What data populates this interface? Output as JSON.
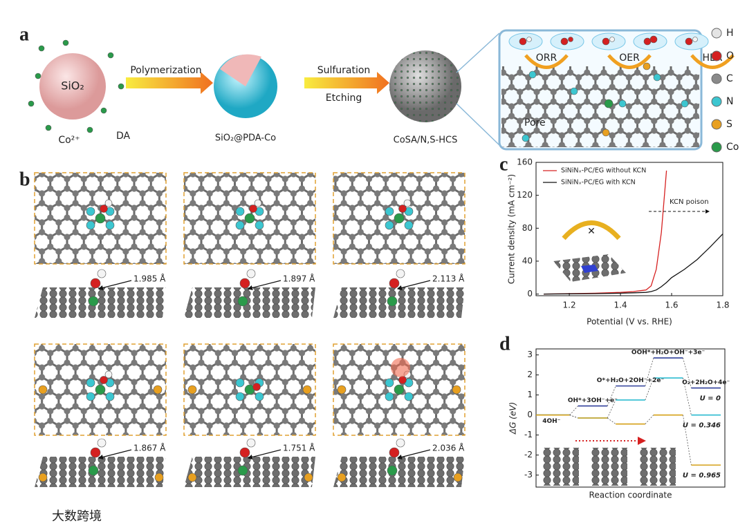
{
  "panel_a": {
    "label": "a",
    "sphere_core": "SiO₂",
    "ion": "Co²⁺",
    "monomer": "DA",
    "step_1": "Polymerization",
    "intermediate": "SiO₂@PDA-Co",
    "step_2": [
      "Sulfuration",
      "Etching"
    ],
    "product": "CoSA/N,S-HCS",
    "reactions": [
      "ORR",
      "OER",
      "HER"
    ],
    "pore": "Pore",
    "legend": [
      {
        "symbol": "H",
        "color": "#e4e4e4"
      },
      {
        "symbol": "O",
        "color": "#d42020"
      },
      {
        "symbol": "C",
        "color": "#8a8a8a"
      },
      {
        "symbol": "N",
        "color": "#3cc6d0"
      },
      {
        "symbol": "S",
        "color": "#e8a020"
      },
      {
        "symbol": "Co",
        "color": "#2a9a4a"
      }
    ]
  },
  "panel_b": {
    "label": "b",
    "distances": [
      "1.985 Å",
      "1.897 Å",
      "2.113 Å",
      "1.867 Å",
      "1.751 Å",
      "2.036 Å"
    ]
  },
  "panel_c": {
    "label": "c",
    "chart_data": {
      "type": "line",
      "xlabel": "Potential (V vs. RHE)",
      "ylabel": "Current density (mA cm⁻²)",
      "x": [
        1.1,
        1.2,
        1.3,
        1.4,
        1.45,
        1.5,
        1.52,
        1.54,
        1.56,
        1.58,
        1.6,
        1.65,
        1.7,
        1.75,
        1.8
      ],
      "series": [
        {
          "name": "SiNiNₓ-PC/EG without KCN",
          "color": "#d62020",
          "values": [
            0,
            0.5,
            1,
            2,
            3,
            5,
            10,
            30,
            75,
            150,
            null,
            null,
            null,
            null,
            null
          ]
        },
        {
          "name": "SiNiNₓ-PC/EG with KCN",
          "color": "#111111",
          "values": [
            0,
            0.3,
            0.5,
            1,
            1.5,
            2,
            3,
            5,
            9,
            14,
            20,
            30,
            42,
            57,
            73
          ]
        }
      ],
      "xlim": [
        1.07,
        1.8
      ],
      "ylim": [
        -2,
        160
      ],
      "xticks": [
        1.2,
        1.4,
        1.6,
        1.8
      ],
      "yticks": [
        0,
        40,
        80,
        120,
        160
      ],
      "annotation": "KCN poison",
      "legend": "upper left"
    }
  },
  "panel_d": {
    "label": "d",
    "chart_data": {
      "type": "step",
      "xlabel": "Reaction coordinate",
      "ylabel": "ΔG (eV)",
      "categories": [
        "4OH⁻",
        "OH*+3OH⁻+e⁻",
        "O*+H₂O+2OH⁻+2e⁻",
        "OOH*+H₂O+OH⁻+3e⁻",
        "O₂+2H₂O+4e⁻"
      ],
      "series": [
        {
          "name": "U = 0",
          "color": "#2f3f9a",
          "values": [
            0,
            0.45,
            1.45,
            2.85,
            1.35
          ]
        },
        {
          "name": "U = 0.346",
          "color": "#2bbbd0",
          "values": [
            0,
            -0.15,
            0.75,
            1.85,
            0
          ]
        },
        {
          "name": "U = 0.965",
          "color": "#d4a017",
          "values": [
            0,
            -0.15,
            -0.45,
            0,
            -2.5
          ]
        }
      ],
      "ylim": [
        -3.6,
        3.3
      ],
      "yticks": [
        -3,
        -2,
        -1,
        0,
        1,
        2,
        3
      ]
    }
  },
  "watermark": "大数跨境"
}
